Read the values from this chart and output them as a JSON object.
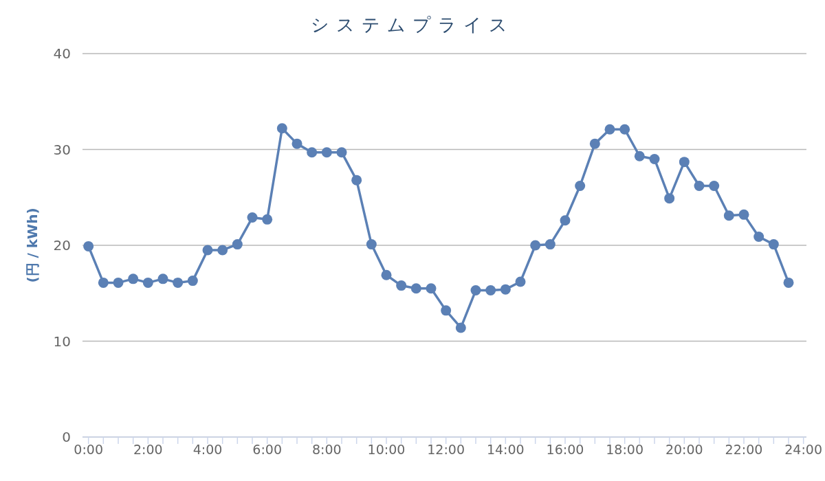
{
  "chart_data": {
    "type": "line",
    "title": "システムプライス",
    "ylabel": "(円 / kWh)",
    "x": [
      0,
      0.5,
      1,
      1.5,
      2,
      2.5,
      3,
      3.5,
      4,
      4.5,
      5,
      5.5,
      6,
      6.5,
      7,
      7.5,
      8,
      8.5,
      9,
      9.5,
      10,
      10.5,
      11,
      11.5,
      12,
      12.5,
      13,
      13.5,
      14,
      14.5,
      15,
      15.5,
      16,
      16.5,
      17,
      17.5,
      18,
      18.5,
      19,
      19.5,
      20,
      20.5,
      21,
      21.5,
      22,
      22.5,
      23,
      23.5
    ],
    "series": [
      {
        "color": "#5b80b5",
        "values": [
          19.9,
          16.1,
          16.1,
          16.5,
          16.1,
          16.5,
          16.1,
          16.3,
          19.5,
          19.5,
          20.1,
          22.9,
          22.7,
          32.2,
          30.6,
          29.7,
          29.7,
          29.7,
          26.8,
          20.1,
          16.9,
          15.8,
          15.5,
          15.5,
          13.2,
          11.4,
          15.3,
          15.3,
          15.4,
          16.2,
          20.0,
          20.1,
          22.6,
          26.2,
          30.6,
          32.1,
          32.1,
          29.3,
          29.0,
          24.9,
          28.7,
          26.2,
          26.2,
          23.1,
          23.2,
          20.9,
          20.1,
          16.1
        ]
      }
    ],
    "xlim": [
      -0.2,
      24.1
    ],
    "xticks": [
      {
        "value": 0,
        "label": "0:00"
      },
      {
        "value": 0.5,
        "label": null
      },
      {
        "value": 1,
        "label": null
      },
      {
        "value": 1.5,
        "label": null
      },
      {
        "value": 2,
        "label": "2:00"
      },
      {
        "value": 2.5,
        "label": null
      },
      {
        "value": 3,
        "label": null
      },
      {
        "value": 3.5,
        "label": null
      },
      {
        "value": 4,
        "label": "4:00"
      },
      {
        "value": 4.5,
        "label": null
      },
      {
        "value": 5,
        "label": null
      },
      {
        "value": 5.5,
        "label": null
      },
      {
        "value": 6,
        "label": "6:00"
      },
      {
        "value": 6.5,
        "label": null
      },
      {
        "value": 7,
        "label": null
      },
      {
        "value": 7.5,
        "label": null
      },
      {
        "value": 8,
        "label": "8:00"
      },
      {
        "value": 8.5,
        "label": null
      },
      {
        "value": 9,
        "label": null
      },
      {
        "value": 9.5,
        "label": null
      },
      {
        "value": 10,
        "label": "10:00"
      },
      {
        "value": 10.5,
        "label": null
      },
      {
        "value": 11,
        "label": null
      },
      {
        "value": 11.5,
        "label": null
      },
      {
        "value": 12,
        "label": "12:00"
      },
      {
        "value": 12.5,
        "label": null
      },
      {
        "value": 13,
        "label": null
      },
      {
        "value": 13.5,
        "label": null
      },
      {
        "value": 14,
        "label": "14:00"
      },
      {
        "value": 14.5,
        "label": null
      },
      {
        "value": 15,
        "label": null
      },
      {
        "value": 15.5,
        "label": null
      },
      {
        "value": 16,
        "label": "16:00"
      },
      {
        "value": 16.5,
        "label": null
      },
      {
        "value": 17,
        "label": null
      },
      {
        "value": 17.5,
        "label": null
      },
      {
        "value": 18,
        "label": "18:00"
      },
      {
        "value": 18.5,
        "label": null
      },
      {
        "value": 19,
        "label": null
      },
      {
        "value": 19.5,
        "label": null
      },
      {
        "value": 20,
        "label": "20:00"
      },
      {
        "value": 20.5,
        "label": null
      },
      {
        "value": 21,
        "label": null
      },
      {
        "value": 21.5,
        "label": null
      },
      {
        "value": 22,
        "label": "22:00"
      },
      {
        "value": 22.5,
        "label": null
      },
      {
        "value": 23,
        "label": null
      },
      {
        "value": 23.5,
        "label": null
      },
      {
        "value": 24,
        "label": "24:00"
      }
    ],
    "ylim": [
      0,
      40
    ],
    "yticks": [
      0,
      10,
      20,
      30,
      40
    ],
    "grid": "y",
    "marker": "circle",
    "line_style": "solid"
  }
}
